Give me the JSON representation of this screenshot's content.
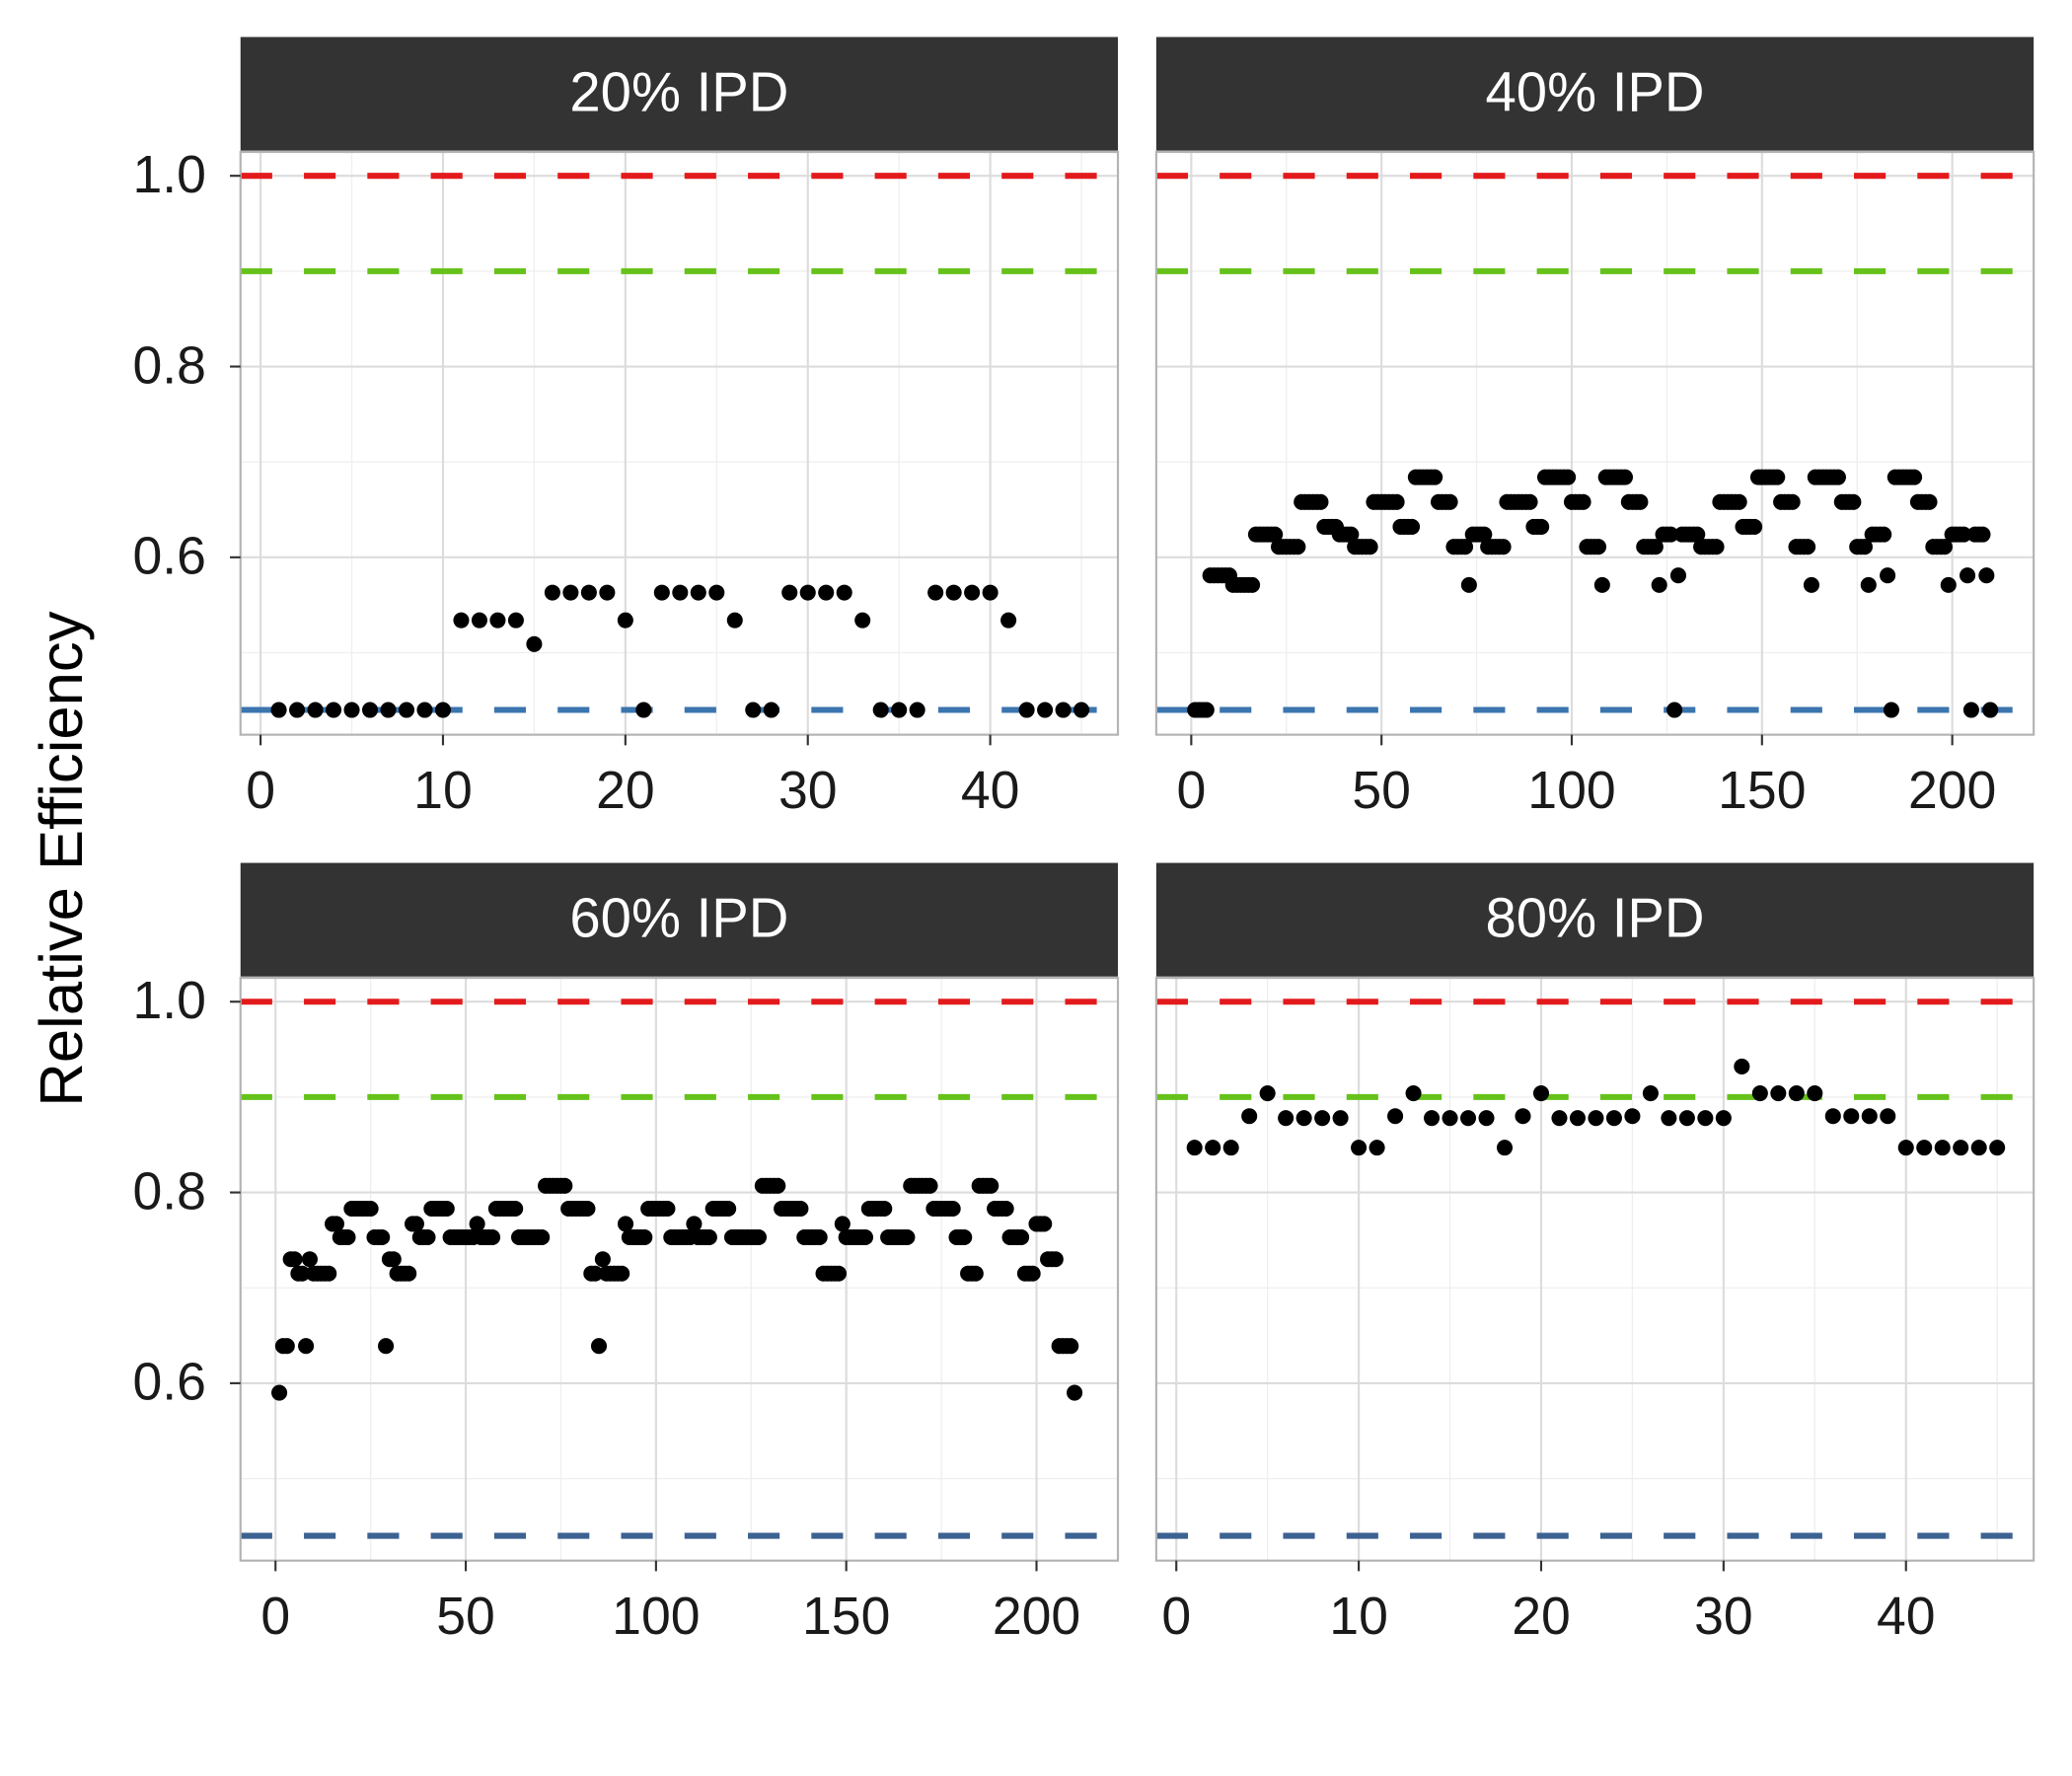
{
  "ylabel": "Relative Efficiency",
  "chart_data": [
    {
      "type": "scatter",
      "title": "20% IPD",
      "color": "#000000",
      "grid": true,
      "xlim": [
        -1.1,
        47.0
      ],
      "xticks": [
        0,
        10,
        20,
        30,
        40
      ],
      "xminor": [
        5,
        15,
        25,
        35,
        45
      ],
      "ylim": [
        0.414,
        1.025
      ],
      "yticks": [
        0.6,
        0.8,
        {
          "value": 1,
          "label": "1.0"
        }
      ],
      "yminor": [
        0.5,
        0.7,
        0.9
      ],
      "hlines": [
        {
          "value": 1,
          "color": "#e31a1c"
        },
        {
          "value": 0.9,
          "color": "#66c21a"
        },
        {
          "value": 0.44,
          "color": "#3b75af"
        }
      ],
      "x": [
        1,
        2,
        3,
        4,
        5,
        6,
        7,
        8,
        9,
        10,
        11,
        12,
        13,
        14,
        15,
        16,
        17,
        18,
        19,
        20,
        21,
        22,
        23,
        24,
        25,
        26,
        27,
        28,
        29,
        30,
        31,
        32,
        33,
        34,
        35,
        36,
        37,
        38,
        39,
        40,
        41,
        42,
        43,
        44,
        45
      ],
      "values": [
        0.44,
        0.44,
        0.44,
        0.44,
        0.44,
        0.44,
        0.44,
        0.44,
        0.44,
        0.44,
        0.534,
        0.534,
        0.534,
        0.534,
        0.509,
        0.563,
        0.563,
        0.563,
        0.563,
        0.534,
        0.44,
        0.563,
        0.563,
        0.563,
        0.563,
        0.534,
        0.44,
        0.44,
        0.563,
        0.563,
        0.563,
        0.563,
        0.534,
        0.44,
        0.44,
        0.44,
        0.563,
        0.563,
        0.563,
        0.563,
        0.534,
        0.44,
        0.44,
        0.44,
        0.44
      ]
    },
    {
      "type": "scatter",
      "title": "40% IPD",
      "color": "#000000",
      "grid": true,
      "xlim": [
        -9.2,
        221.4
      ],
      "xticks": [
        0,
        50,
        100,
        150,
        200
      ],
      "xminor": [
        25,
        75,
        125,
        175
      ],
      "ylim": [
        0.414,
        1.025
      ],
      "yticks": [
        0.6,
        0.8,
        {
          "value": 1,
          "label": "1.0"
        }
      ],
      "yminor": [
        0.5,
        0.7,
        0.9
      ],
      "hlines": [
        {
          "value": 1,
          "color": "#e31a1c"
        },
        {
          "value": 0.9,
          "color": "#66c21a"
        },
        {
          "value": 0.44,
          "color": "#3b75af"
        }
      ],
      "x": [
        1,
        2,
        3,
        4,
        5,
        6,
        7,
        8,
        9,
        10,
        11,
        12,
        13,
        14,
        15,
        16,
        17,
        18,
        19,
        20,
        21,
        22,
        23,
        24,
        25,
        26,
        27,
        28,
        29,
        30,
        31,
        32,
        33,
        34,
        35,
        36,
        37,
        38,
        39,
        40,
        41,
        42,
        43,
        44,
        45,
        46,
        47,
        48,
        49,
        50,
        51,
        52,
        53,
        54,
        55,
        56,
        57,
        58,
        59,
        60,
        61,
        62,
        63,
        64,
        65,
        66,
        67,
        68,
        69,
        70,
        71,
        72,
        73,
        74,
        75,
        76,
        77,
        78,
        79,
        80,
        81,
        82,
        83,
        84,
        85,
        86,
        87,
        88,
        89,
        90,
        91,
        92,
        93,
        94,
        95,
        96,
        97,
        98,
        99,
        100,
        101,
        102,
        103,
        104,
        105,
        106,
        107,
        108,
        109,
        110,
        111,
        112,
        113,
        114,
        115,
        116,
        117,
        118,
        119,
        120,
        121,
        122,
        123,
        124,
        125,
        126,
        127,
        128,
        129,
        130,
        131,
        132,
        133,
        134,
        135,
        136,
        137,
        138,
        139,
        140,
        141,
        142,
        143,
        144,
        145,
        146,
        147,
        148,
        149,
        150,
        151,
        152,
        153,
        154,
        155,
        156,
        157,
        158,
        159,
        160,
        161,
        162,
        163,
        164,
        165,
        166,
        167,
        168,
        169,
        170,
        171,
        172,
        173,
        174,
        175,
        176,
        177,
        178,
        179,
        180,
        181,
        182,
        183,
        184,
        185,
        186,
        187,
        188,
        189,
        190,
        191,
        192,
        193,
        194,
        195,
        196,
        197,
        198,
        199,
        200,
        201,
        202,
        203,
        204,
        205,
        206,
        207,
        208,
        209,
        210
      ],
      "values": [
        0.44,
        0.44,
        0.44,
        0.44,
        0.581,
        0.581,
        0.581,
        0.581,
        0.581,
        0.581,
        0.571,
        0.571,
        0.571,
        0.571,
        0.571,
        0.571,
        0.624,
        0.624,
        0.624,
        0.624,
        0.624,
        0.624,
        0.611,
        0.611,
        0.611,
        0.611,
        0.611,
        0.611,
        0.658,
        0.658,
        0.658,
        0.658,
        0.658,
        0.658,
        0.632,
        0.632,
        0.632,
        0.632,
        0.624,
        0.624,
        0.624,
        0.624,
        0.611,
        0.611,
        0.611,
        0.611,
        0.611,
        0.658,
        0.658,
        0.658,
        0.658,
        0.658,
        0.658,
        0.658,
        0.632,
        0.632,
        0.632,
        0.632,
        0.684,
        0.684,
        0.684,
        0.684,
        0.684,
        0.684,
        0.658,
        0.658,
        0.658,
        0.658,
        0.611,
        0.611,
        0.611,
        0.611,
        0.571,
        0.624,
        0.624,
        0.624,
        0.624,
        0.611,
        0.611,
        0.611,
        0.611,
        0.611,
        0.658,
        0.658,
        0.658,
        0.658,
        0.658,
        0.658,
        0.658,
        0.632,
        0.632,
        0.632,
        0.684,
        0.684,
        0.684,
        0.684,
        0.684,
        0.684,
        0.684,
        0.658,
        0.658,
        0.658,
        0.658,
        0.611,
        0.611,
        0.611,
        0.611,
        0.571,
        0.684,
        0.684,
        0.684,
        0.684,
        0.684,
        0.684,
        0.658,
        0.658,
        0.658,
        0.658,
        0.611,
        0.611,
        0.611,
        0.611,
        0.571,
        0.624,
        0.624,
        0.624,
        0.44,
        0.581,
        0.624,
        0.624,
        0.624,
        0.624,
        0.624,
        0.611,
        0.611,
        0.611,
        0.611,
        0.611,
        0.658,
        0.658,
        0.658,
        0.658,
        0.658,
        0.658,
        0.632,
        0.632,
        0.632,
        0.632,
        0.684,
        0.684,
        0.684,
        0.684,
        0.684,
        0.684,
        0.658,
        0.658,
        0.658,
        0.658,
        0.611,
        0.611,
        0.611,
        0.611,
        0.571,
        0.684,
        0.684,
        0.684,
        0.684,
        0.684,
        0.684,
        0.684,
        0.658,
        0.658,
        0.658,
        0.658,
        0.611,
        0.611,
        0.611,
        0.571,
        0.624,
        0.624,
        0.624,
        0.624,
        0.581,
        0.44,
        0.684,
        0.684,
        0.684,
        0.684,
        0.684,
        0.684,
        0.658,
        0.658,
        0.658,
        0.658,
        0.611,
        0.611,
        0.611,
        0.611,
        0.571,
        0.624,
        0.624,
        0.624,
        0.624,
        0.581,
        0.44,
        0.624,
        0.624,
        0.624,
        0.581,
        0.44
      ]
    },
    {
      "type": "scatter",
      "title": "60% IPD",
      "color": "#000000",
      "grid": true,
      "xlim": [
        -9.2,
        221.4
      ],
      "xticks": [
        0,
        50,
        100,
        150,
        200
      ],
      "xminor": [
        25,
        75,
        125,
        175
      ],
      "ylim": [
        0.414,
        1.025
      ],
      "yticks": [
        0.6,
        0.8,
        {
          "value": 1,
          "label": "1.0"
        }
      ],
      "yminor": [
        0.5,
        0.7,
        0.9
      ],
      "hlines": [
        {
          "value": 1,
          "color": "#e31a1c"
        },
        {
          "value": 0.9,
          "color": "#66c21a"
        },
        {
          "value": 0.44,
          "color": "#3c6291"
        }
      ],
      "x": [
        1,
        2,
        3,
        4,
        5,
        6,
        7,
        8,
        9,
        10,
        11,
        12,
        13,
        14,
        15,
        16,
        17,
        18,
        19,
        20,
        21,
        22,
        23,
        24,
        25,
        26,
        27,
        28,
        29,
        30,
        31,
        32,
        33,
        34,
        35,
        36,
        37,
        38,
        39,
        40,
        41,
        42,
        43,
        44,
        45,
        46,
        47,
        48,
        49,
        50,
        51,
        52,
        53,
        54,
        55,
        56,
        57,
        58,
        59,
        60,
        61,
        62,
        63,
        64,
        65,
        66,
        67,
        68,
        69,
        70,
        71,
        72,
        73,
        74,
        75,
        76,
        77,
        78,
        79,
        80,
        81,
        82,
        83,
        84,
        85,
        86,
        87,
        88,
        89,
        90,
        91,
        92,
        93,
        94,
        95,
        96,
        97,
        98,
        99,
        100,
        101,
        102,
        103,
        104,
        105,
        106,
        107,
        108,
        109,
        110,
        111,
        112,
        113,
        114,
        115,
        116,
        117,
        118,
        119,
        120,
        121,
        122,
        123,
        124,
        125,
        126,
        127,
        128,
        129,
        130,
        131,
        132,
        133,
        134,
        135,
        136,
        137,
        138,
        139,
        140,
        141,
        142,
        143,
        144,
        145,
        146,
        147,
        148,
        149,
        150,
        151,
        152,
        153,
        154,
        155,
        156,
        157,
        158,
        159,
        160,
        161,
        162,
        163,
        164,
        165,
        166,
        167,
        168,
        169,
        170,
        171,
        172,
        173,
        174,
        175,
        176,
        177,
        178,
        179,
        180,
        181,
        182,
        183,
        184,
        185,
        186,
        187,
        188,
        189,
        190,
        191,
        192,
        193,
        194,
        195,
        196,
        197,
        198,
        199,
        200,
        201,
        202,
        203,
        204,
        205,
        206,
        207,
        208,
        209,
        210
      ],
      "values": [
        0.59,
        0.639,
        0.639,
        0.73,
        0.73,
        0.715,
        0.715,
        0.639,
        0.73,
        0.715,
        0.715,
        0.715,
        0.715,
        0.715,
        0.767,
        0.767,
        0.753,
        0.753,
        0.753,
        0.783,
        0.783,
        0.783,
        0.783,
        0.783,
        0.783,
        0.753,
        0.753,
        0.753,
        0.639,
        0.73,
        0.73,
        0.715,
        0.715,
        0.715,
        0.715,
        0.767,
        0.767,
        0.753,
        0.753,
        0.753,
        0.783,
        0.783,
        0.783,
        0.783,
        0.783,
        0.753,
        0.753,
        0.753,
        0.753,
        0.753,
        0.753,
        0.753,
        0.767,
        0.753,
        0.753,
        0.753,
        0.753,
        0.783,
        0.783,
        0.783,
        0.783,
        0.783,
        0.783,
        0.753,
        0.753,
        0.753,
        0.753,
        0.753,
        0.753,
        0.753,
        0.807,
        0.807,
        0.807,
        0.807,
        0.807,
        0.807,
        0.783,
        0.783,
        0.783,
        0.783,
        0.783,
        0.783,
        0.715,
        0.715,
        0.639,
        0.73,
        0.715,
        0.715,
        0.715,
        0.715,
        0.715,
        0.767,
        0.753,
        0.753,
        0.753,
        0.753,
        0.753,
        0.783,
        0.783,
        0.783,
        0.783,
        0.783,
        0.783,
        0.753,
        0.753,
        0.753,
        0.753,
        0.753,
        0.753,
        0.767,
        0.753,
        0.753,
        0.753,
        0.753,
        0.783,
        0.783,
        0.783,
        0.783,
        0.783,
        0.753,
        0.753,
        0.753,
        0.753,
        0.753,
        0.753,
        0.753,
        0.753,
        0.807,
        0.807,
        0.807,
        0.807,
        0.807,
        0.783,
        0.783,
        0.783,
        0.783,
        0.783,
        0.783,
        0.753,
        0.753,
        0.753,
        0.753,
        0.753,
        0.715,
        0.715,
        0.715,
        0.715,
        0.715,
        0.767,
        0.753,
        0.753,
        0.753,
        0.753,
        0.753,
        0.753,
        0.783,
        0.783,
        0.783,
        0.783,
        0.783,
        0.753,
        0.753,
        0.753,
        0.753,
        0.753,
        0.753,
        0.807,
        0.807,
        0.807,
        0.807,
        0.807,
        0.807,
        0.783,
        0.783,
        0.783,
        0.783,
        0.783,
        0.783,
        0.753,
        0.753,
        0.753,
        0.715,
        0.715,
        0.715,
        0.807,
        0.807,
        0.807,
        0.807,
        0.783,
        0.783,
        0.783,
        0.783,
        0.753,
        0.753,
        0.753,
        0.753,
        0.715,
        0.715,
        0.715,
        0.767,
        0.767,
        0.767,
        0.73,
        0.73,
        0.73,
        0.639,
        0.639,
        0.639,
        0.639,
        0.59
      ]
    },
    {
      "type": "scatter",
      "title": "80% IPD",
      "color": "#000000",
      "grid": true,
      "xlim": [
        -1.1,
        47.0
      ],
      "xticks": [
        0,
        10,
        20,
        30,
        40
      ],
      "xminor": [
        5,
        15,
        25,
        35,
        45
      ],
      "ylim": [
        0.414,
        1.025
      ],
      "yticks": [
        0.6,
        0.8,
        {
          "value": 1,
          "label": "1.0"
        }
      ],
      "yminor": [
        0.5,
        0.7,
        0.9
      ],
      "hlines": [
        {
          "value": 1,
          "color": "#e31a1c"
        },
        {
          "value": 0.9,
          "color": "#66c21a"
        },
        {
          "value": 0.44,
          "color": "#3c6291"
        }
      ],
      "x": [
        1,
        2,
        3,
        4,
        5,
        6,
        7,
        8,
        9,
        10,
        11,
        12,
        13,
        14,
        15,
        16,
        17,
        18,
        19,
        20,
        21,
        22,
        23,
        24,
        25,
        26,
        27,
        28,
        29,
        30,
        31,
        32,
        33,
        34,
        35,
        36,
        37,
        38,
        39,
        40,
        41,
        42,
        43,
        44,
        45
      ],
      "values": [
        0.847,
        0.847,
        0.847,
        0.88,
        0.904,
        0.878,
        0.878,
        0.878,
        0.878,
        0.847,
        0.847,
        0.88,
        0.904,
        0.878,
        0.878,
        0.878,
        0.878,
        0.847,
        0.88,
        0.904,
        0.878,
        0.878,
        0.878,
        0.878,
        0.88,
        0.904,
        0.878,
        0.878,
        0.878,
        0.878,
        0.932,
        0.904,
        0.904,
        0.904,
        0.904,
        0.88,
        0.88,
        0.88,
        0.88,
        0.847,
        0.847,
        0.847,
        0.847,
        0.847,
        0.847
      ]
    }
  ]
}
